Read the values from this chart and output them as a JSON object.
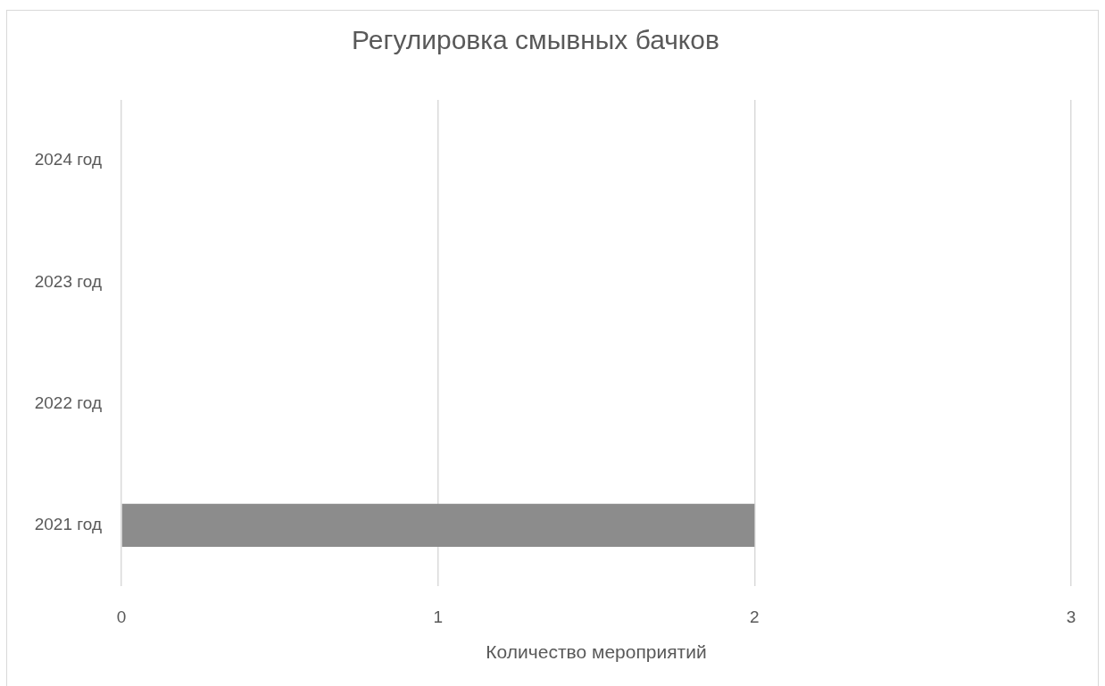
{
  "chart_data": {
    "type": "bar",
    "orientation": "horizontal",
    "title": "Регулировка смывных бачков",
    "xlabel": "Количество мероприятий",
    "categories": [
      "2024 год",
      "2023 год",
      "2022 год",
      "2021 год"
    ],
    "values": [
      0,
      0,
      0,
      2
    ],
    "color": "#8c8c8c",
    "xlim": [
      0,
      3
    ],
    "xticks": [
      0,
      1,
      2,
      3
    ],
    "grid": "x"
  }
}
